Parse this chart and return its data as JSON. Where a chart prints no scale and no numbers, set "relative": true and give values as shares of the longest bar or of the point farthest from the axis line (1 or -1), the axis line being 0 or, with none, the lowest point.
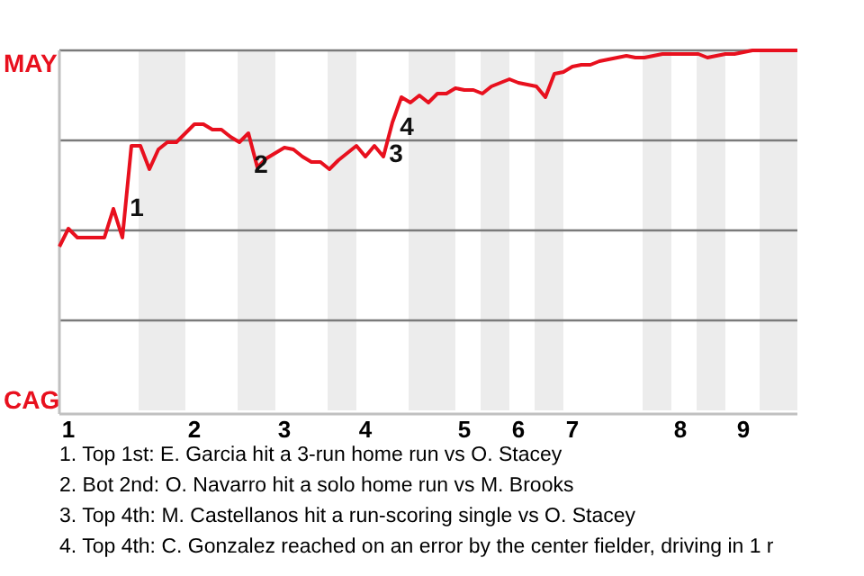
{
  "chart_data": {
    "type": "line",
    "relative": true,
    "categories": [
      null,
      "1",
      null,
      null,
      null,
      null,
      null,
      null,
      null,
      null,
      null,
      null,
      null,
      null,
      null,
      "2",
      null,
      null,
      null,
      null,
      null,
      null,
      null,
      null,
      null,
      "3",
      null,
      null,
      null,
      null,
      null,
      null,
      null,
      null,
      "4",
      null,
      null,
      null,
      null,
      null,
      null,
      null,
      null,
      null,
      null,
      "5",
      null,
      null,
      null,
      null,
      null,
      "6",
      null,
      null,
      null,
      null,
      null,
      "7",
      null,
      null,
      null,
      null,
      null,
      null,
      null,
      null,
      null,
      null,
      null,
      "8",
      null,
      null,
      null,
      null,
      null,
      null,
      "9",
      null,
      null,
      null,
      null,
      null,
      null
    ],
    "grid": "y",
    "marker": "none",
    "line_style": "solid",
    "series": [
      {
        "color": "#e8101e",
        "values": [
          0.455,
          0.505,
          0.48,
          0.48,
          0.48,
          0.48,
          0.56,
          0.48,
          0.735,
          0.735,
          0.67,
          0.725,
          0.745,
          0.745,
          0.77,
          0.795,
          0.795,
          0.78,
          0.78,
          0.76,
          0.745,
          0.77,
          0.675,
          0.7,
          0.715,
          0.73,
          0.725,
          0.705,
          0.69,
          0.69,
          0.67,
          0.695,
          0.715,
          0.735,
          0.705,
          0.735,
          0.705,
          0.8,
          0.87,
          0.855,
          0.875,
          0.855,
          0.88,
          0.88,
          0.895,
          0.89,
          0.89,
          0.88,
          0.9,
          0.91,
          0.92,
          0.91,
          0.905,
          0.9,
          0.87,
          0.935,
          0.94,
          0.955,
          0.96,
          0.96,
          0.97,
          0.975,
          0.98,
          0.985,
          0.98,
          0.98,
          0.985,
          0.99,
          0.99,
          0.99,
          0.99,
          0.99,
          0.98,
          0.985,
          0.99,
          0.99,
          0.995,
          1,
          1,
          1,
          1,
          1,
          1
        ]
      }
    ],
    "annotations": [
      "MAY",
      "CAG",
      "1",
      "2",
      "3",
      "4",
      "1. Top 1st: E. Garcia hit a 3-run home run vs O. Stacey",
      "2. Bot 2nd: O. Navarro hit a solo home run vs M. Brooks",
      "3. Top 4th: M. Castellanos hit a run-scoring single vs O. Stacey",
      "4. Top 4th: C. Gonzalez reached on an error by the center fielder, driving in 1 r"
    ]
  }
}
